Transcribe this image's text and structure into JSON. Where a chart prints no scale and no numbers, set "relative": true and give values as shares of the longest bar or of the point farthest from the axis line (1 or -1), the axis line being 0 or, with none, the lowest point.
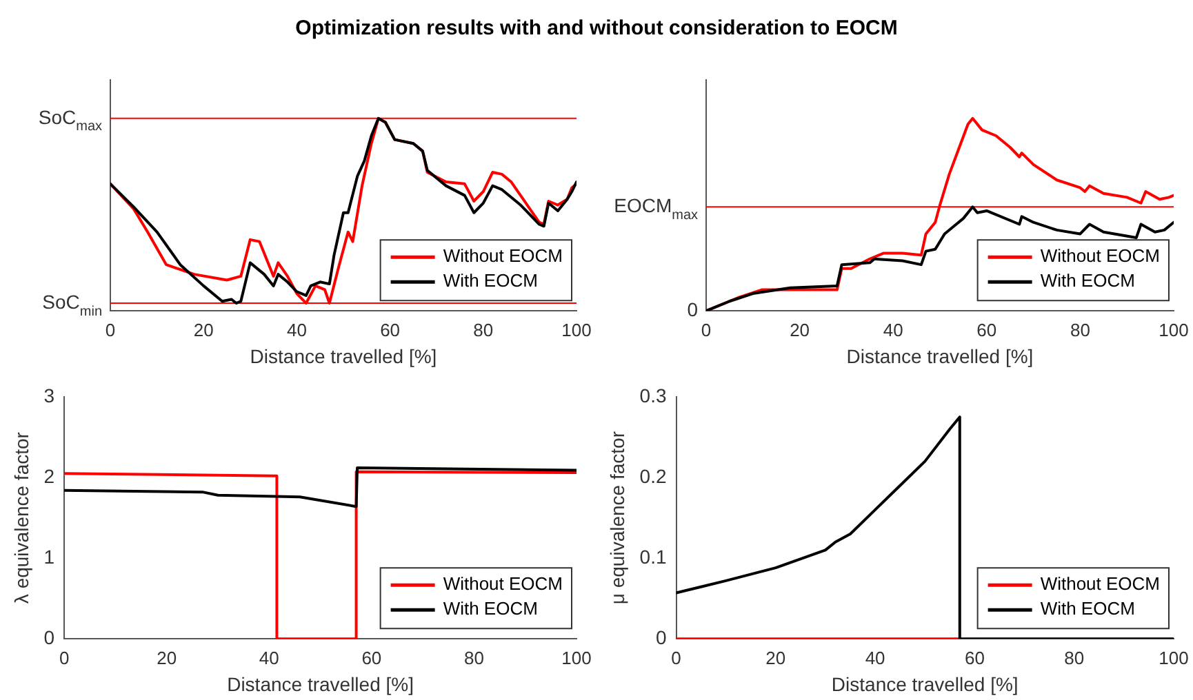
{
  "chart_data": [
    {
      "type": "line",
      "title": "Optimization results with and without consideration to EOCM",
      "xlabel": "Distance travelled [%]",
      "xlim": [
        0,
        100
      ],
      "xticks": [
        0,
        20,
        40,
        60,
        80,
        100
      ],
      "relative": true,
      "grid": false,
      "legend": "bottom right",
      "marker": "none",
      "line_style": "solid",
      "ref_lines": [
        {
          "axis": "y",
          "value": 0.04,
          "label": "SoC$_{min}$",
          "color": "#ff0000"
        },
        {
          "axis": "y",
          "value": 1,
          "label": "SoC$_{max}$",
          "color": "#ff0000"
        }
      ],
      "series": [
        {
          "name": "Without EOCM",
          "color": "#ff0000",
          "x": [
            0,
            5,
            8,
            12,
            18,
            25,
            28,
            30,
            32,
            35,
            36,
            38,
            40,
            42,
            44,
            46,
            47,
            49,
            51,
            52,
            54,
            56,
            57.5,
            59,
            61,
            65,
            67,
            68,
            72,
            76,
            78,
            80,
            82,
            84,
            86,
            88,
            92,
            93,
            94,
            96,
            98,
            99,
            100
          ],
          "values": [
            0.66,
            0.53,
            0.41,
            0.24,
            0.19,
            0.16,
            0.18,
            0.37,
            0.36,
            0.18,
            0.25,
            0.18,
            0.09,
            0.04,
            0.13,
            0.11,
            0.04,
            0.23,
            0.41,
            0.36,
            0.65,
            0.87,
            1,
            0.98,
            0.89,
            0.87,
            0.83,
            0.72,
            0.67,
            0.66,
            0.57,
            0.62,
            0.72,
            0.71,
            0.67,
            0.6,
            0.46,
            0.45,
            0.57,
            0.55,
            0.58,
            0.64,
            0.66
          ]
        },
        {
          "name": "With EOCM",
          "color": "#000000",
          "x": [
            0,
            5,
            10,
            15,
            20,
            24,
            26,
            27,
            28,
            30,
            33,
            35,
            36,
            38,
            40,
            42,
            43,
            45,
            47,
            48,
            50,
            51,
            53,
            54.5,
            56,
            57.5,
            59,
            61,
            65,
            67,
            68,
            72,
            76,
            78,
            80,
            82,
            84,
            88,
            92,
            93,
            94,
            96,
            98,
            99,
            100
          ],
          "values": [
            0.66,
            0.54,
            0.41,
            0.24,
            0.13,
            0.05,
            0.06,
            0.04,
            0.05,
            0.25,
            0.19,
            0.13,
            0.19,
            0.15,
            0.1,
            0.08,
            0.13,
            0.15,
            0.14,
            0.29,
            0.51,
            0.51,
            0.7,
            0.78,
            0.91,
            1,
            0.98,
            0.89,
            0.87,
            0.83,
            0.73,
            0.65,
            0.6,
            0.51,
            0.56,
            0.65,
            0.63,
            0.55,
            0.45,
            0.44,
            0.56,
            0.52,
            0.58,
            0.62,
            0.67
          ]
        }
      ]
    },
    {
      "type": "line",
      "xlabel": "Distance travelled [%]",
      "xlim": [
        0,
        100
      ],
      "xticks": [
        0,
        20,
        40,
        60,
        80,
        100
      ],
      "relative": true,
      "grid": false,
      "legend": "bottom right",
      "marker": "none",
      "line_style": "solid",
      "annotations": [
        "0"
      ],
      "ref_lines": [
        {
          "axis": "y",
          "value": 0.54,
          "label": "EOCM$_{max}$",
          "color": "#ff0000"
        }
      ],
      "series": [
        {
          "name": "Without EOCM",
          "color": "#ff0000",
          "x": [
            0,
            5,
            7,
            12,
            20,
            28,
            29,
            31,
            35,
            38,
            42,
            46,
            47,
            49,
            50,
            52,
            54,
            56,
            57,
            59,
            62,
            65,
            67,
            67.5,
            70,
            75,
            80,
            81,
            82,
            85,
            90,
            93,
            94,
            97,
            99,
            100
          ],
          "values": [
            0,
            0.05,
            0.07,
            0.11,
            0.11,
            0.11,
            0.22,
            0.22,
            0.27,
            0.3,
            0.3,
            0.29,
            0.4,
            0.46,
            0.55,
            0.71,
            0.84,
            0.97,
            1,
            0.94,
            0.91,
            0.85,
            0.8,
            0.82,
            0.76,
            0.68,
            0.64,
            0.62,
            0.65,
            0.61,
            0.59,
            0.56,
            0.62,
            0.58,
            0.59,
            0.6
          ]
        },
        {
          "name": "With EOCM",
          "color": "#000000",
          "x": [
            0,
            5,
            10,
            18,
            28,
            29,
            35,
            36,
            42,
            46,
            47,
            49,
            51,
            53,
            55,
            57,
            58,
            60,
            67,
            67.5,
            70,
            75,
            80,
            82,
            85,
            92,
            93,
            96,
            98,
            100
          ],
          "values": [
            0,
            0.05,
            0.09,
            0.12,
            0.13,
            0.24,
            0.25,
            0.27,
            0.26,
            0.24,
            0.31,
            0.32,
            0.4,
            0.44,
            0.48,
            0.54,
            0.51,
            0.52,
            0.45,
            0.49,
            0.46,
            0.42,
            0.4,
            0.45,
            0.41,
            0.38,
            0.45,
            0.41,
            0.42,
            0.46
          ]
        }
      ]
    },
    {
      "type": "line",
      "xlabel": "Distance travelled [%]",
      "ylabel": "λ equivalence factor",
      "xlim": [
        0,
        100
      ],
      "xticks": [
        0,
        20,
        40,
        60,
        80,
        100
      ],
      "ylim": [
        0,
        3
      ],
      "yticks": [
        0,
        1,
        2,
        3
      ],
      "grid": false,
      "legend": "bottom right",
      "marker": "none",
      "line_style": "solid",
      "series": [
        {
          "name": "Without EOCM",
          "color": "#ff0000",
          "x": [
            0,
            41.5,
            41.5,
            57,
            57,
            100
          ],
          "values": [
            2.05,
            2.02,
            0,
            0,
            2.07,
            2.06
          ]
        },
        {
          "name": "With EOCM",
          "color": "#000000",
          "x": [
            0,
            27,
            30,
            46,
            57,
            57.2,
            100
          ],
          "values": [
            1.84,
            1.82,
            1.78,
            1.76,
            1.64,
            2.12,
            2.09
          ]
        }
      ]
    },
    {
      "type": "line",
      "xlabel": "Distance travelled [%]",
      "ylabel": "μ equivalence factor",
      "xlim": [
        0,
        100
      ],
      "xticks": [
        0,
        20,
        40,
        60,
        80,
        100
      ],
      "ylim": [
        0,
        0.3
      ],
      "yticks": [
        0,
        0.1,
        0.2,
        0.3
      ],
      "grid": false,
      "legend": "bottom right",
      "marker": "none",
      "line_style": "solid",
      "series": [
        {
          "name": "Without EOCM",
          "color": "#ff0000",
          "x": [
            0,
            57
          ],
          "values": [
            0,
            0
          ]
        },
        {
          "name": "With EOCM",
          "color": "#000000",
          "x": [
            0,
            10,
            20,
            30,
            32,
            35,
            40,
            45,
            50,
            55,
            57,
            57,
            100
          ],
          "values": [
            0.057,
            0.072,
            0.088,
            0.11,
            0.12,
            0.13,
            0.16,
            0.19,
            0.22,
            0.26,
            0.275,
            0,
            0
          ]
        }
      ]
    }
  ]
}
